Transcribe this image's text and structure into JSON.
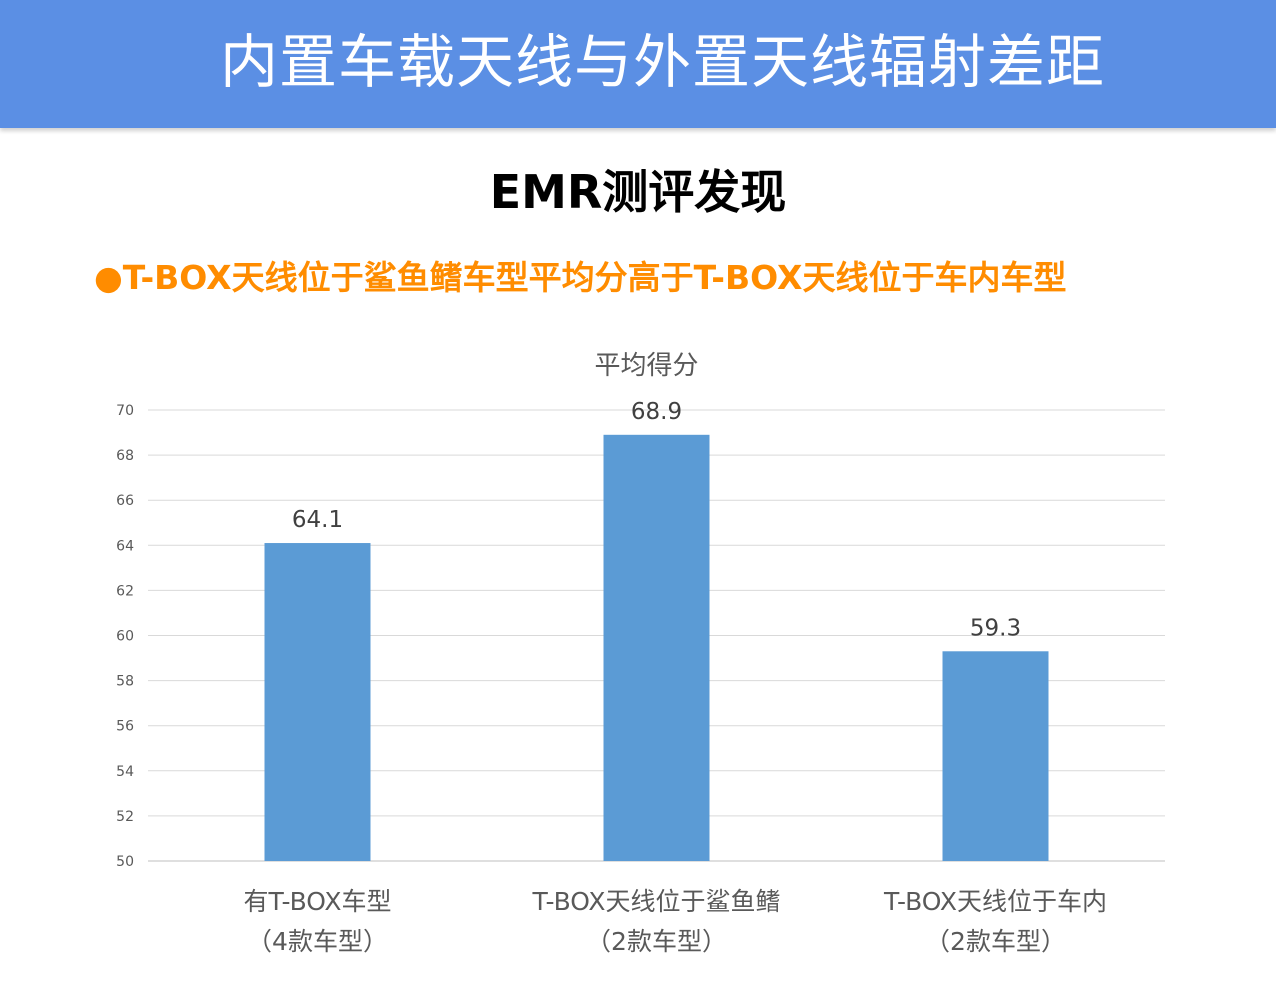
{
  "header": {
    "title": "内置车载天线与外置天线辐射差距"
  },
  "section": {
    "title": "EMR测评发现"
  },
  "finding": {
    "bullet": "●",
    "text": "T-BOX天线位于鲨鱼鳍车型平均分高于T-BOX天线位于车内车型"
  },
  "colors": {
    "header_bg": "#5b8fe4",
    "finding_text": "#ff8c00",
    "bar": "#5b9bd5"
  },
  "chart_data": {
    "type": "bar",
    "title": "平均得分",
    "categories": [
      [
        "有T-BOX车型",
        "（4款车型）"
      ],
      [
        "T-BOX天线位于鲨鱼鳍",
        "（2款车型）"
      ],
      [
        "T-BOX天线位于车内",
        "（2款车型）"
      ]
    ],
    "values": [
      64.1,
      68.9,
      59.3
    ],
    "value_labels": [
      "64.1",
      "68.9",
      "59.3"
    ],
    "ylim": [
      50,
      70
    ],
    "yticks": [
      50,
      52,
      54,
      56,
      58,
      60,
      62,
      64,
      66,
      68,
      70
    ],
    "grid": true,
    "legend": "none"
  }
}
